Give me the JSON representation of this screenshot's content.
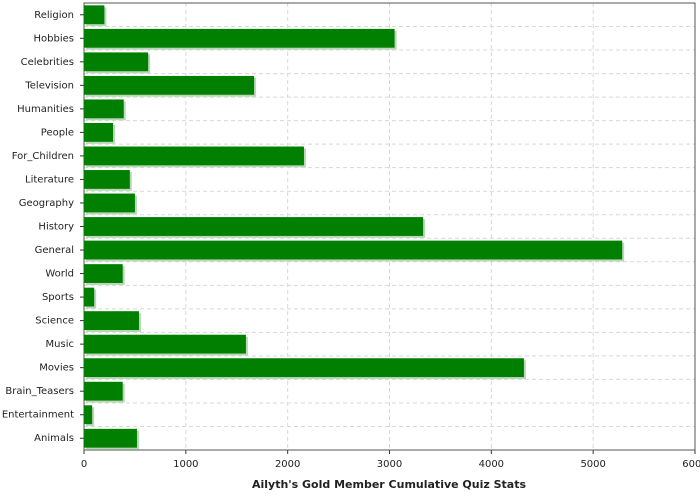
{
  "chart_data": {
    "type": "bar",
    "orientation": "horizontal",
    "title": "Ailyth's Gold Member Cumulative Quiz Stats",
    "categories": [
      "Religion",
      "Hobbies",
      "Celebrities",
      "Television",
      "Humanities",
      "People",
      "For_Children",
      "Literature",
      "Geography",
      "History",
      "General",
      "World",
      "Sports",
      "Science",
      "Music",
      "Movies",
      "Brain_Teasers",
      "Entertainment",
      "Animals"
    ],
    "values": [
      200,
      3050,
      630,
      1670,
      390,
      285,
      2160,
      450,
      500,
      3330,
      5285,
      380,
      100,
      540,
      1590,
      4320,
      380,
      80,
      520
    ],
    "color": "#007f00",
    "xlim": [
      0,
      6000
    ],
    "xticks": [
      0,
      1000,
      2000,
      3000,
      4000,
      5000,
      6000
    ],
    "grid": true
  }
}
